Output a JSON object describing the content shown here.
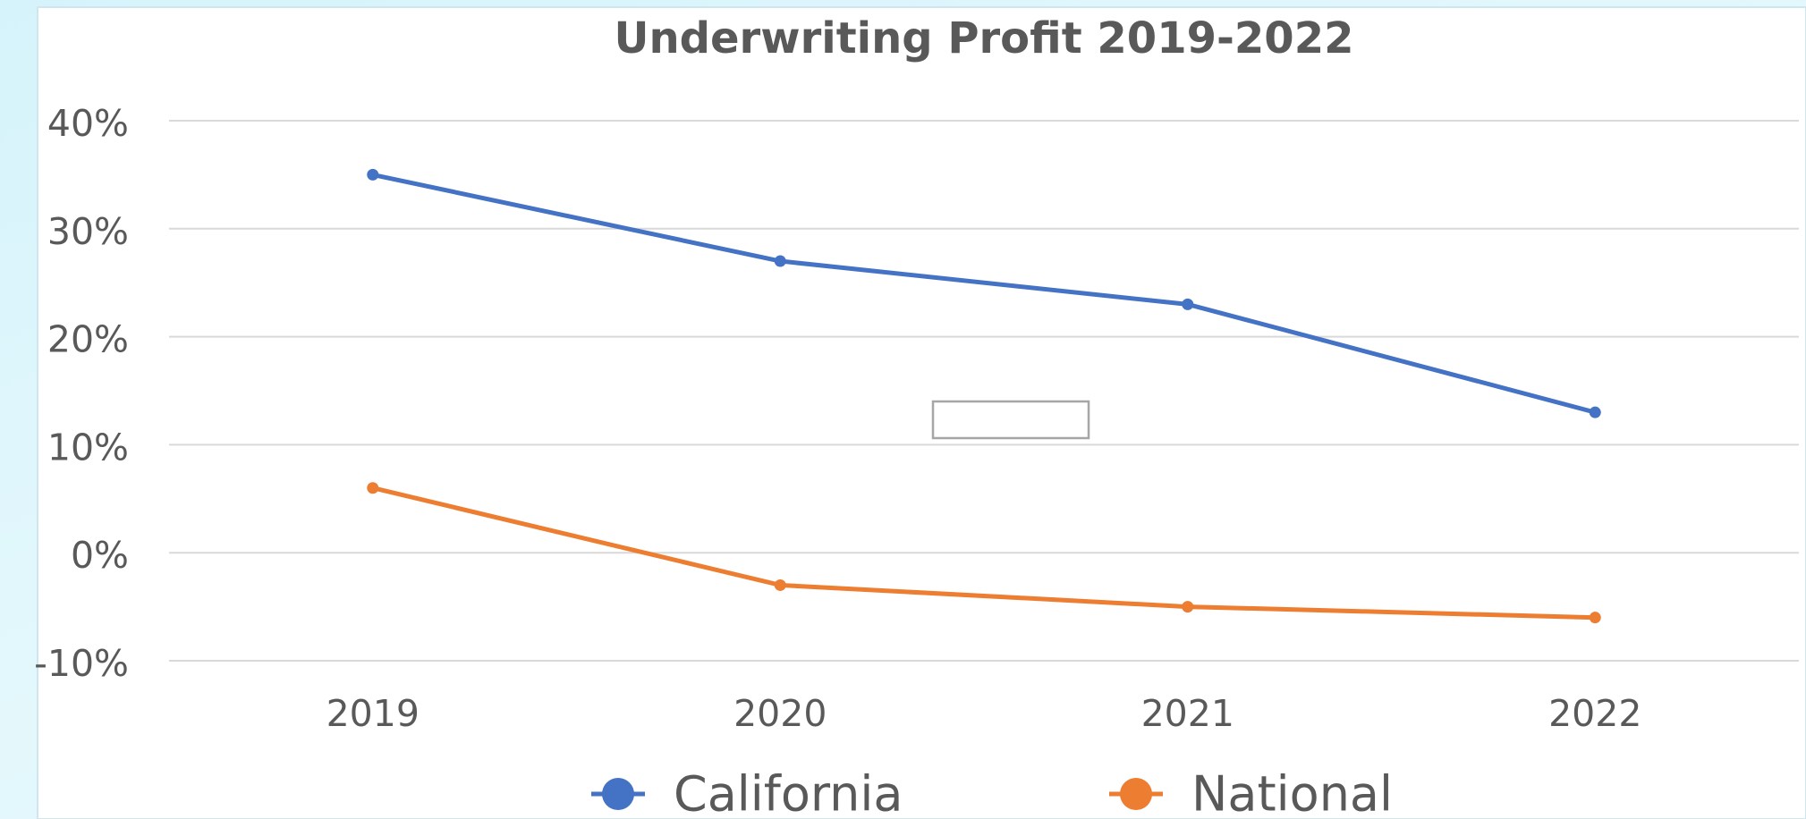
{
  "chart_data": {
    "type": "line",
    "title": "Underwriting Profit 2019-2022",
    "categories": [
      "2019",
      "2020",
      "2021",
      "2022"
    ],
    "series": [
      {
        "name": "California",
        "color": "#4472c4",
        "values": [
          35,
          27,
          23,
          13
        ]
      },
      {
        "name": "National",
        "color": "#ed7d31",
        "values": [
          6,
          -3,
          -5,
          -6
        ]
      }
    ],
    "ylim": [
      -10,
      40
    ],
    "yticks": [
      {
        "value": -10,
        "label": "-10%"
      },
      {
        "value": 0,
        "label": "0%"
      },
      {
        "value": 10,
        "label": "10%"
      },
      {
        "value": 20,
        "label": "20%"
      },
      {
        "value": 30,
        "label": "30%"
      },
      {
        "value": 40,
        "label": "40%"
      }
    ],
    "grid": true,
    "legend": "bottom"
  }
}
